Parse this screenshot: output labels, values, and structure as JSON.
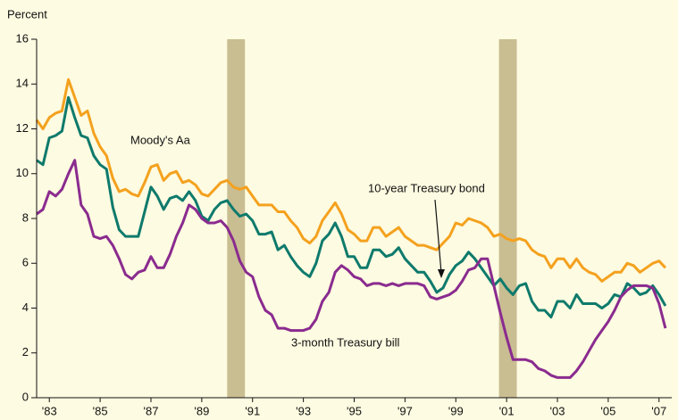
{
  "chart_data": {
    "type": "line",
    "ylabel": "Percent",
    "xlim": [
      1983,
      2008
    ],
    "ylim": [
      0,
      16
    ],
    "yticks": [
      0,
      2,
      4,
      6,
      8,
      10,
      12,
      14,
      16
    ],
    "xticks": [
      {
        "value": 1983.5,
        "label": "'83"
      },
      {
        "value": 1985.5,
        "label": "'85"
      },
      {
        "value": 1987.5,
        "label": "'87"
      },
      {
        "value": 1989.5,
        "label": "'89"
      },
      {
        "value": 1991.5,
        "label": "'91"
      },
      {
        "value": 1993.5,
        "label": "'93"
      },
      {
        "value": 1995.5,
        "label": "'95"
      },
      {
        "value": 1997.5,
        "label": "'97"
      },
      {
        "value": 1999.5,
        "label": "'99"
      },
      {
        "value": 2001.5,
        "label": "'01"
      },
      {
        "value": 2003.5,
        "label": "'03"
      },
      {
        "value": 2005.5,
        "label": "'05"
      },
      {
        "value": 2007.5,
        "label": "'07"
      }
    ],
    "shaded_periods": [
      [
        1990.5,
        1991.2
      ],
      [
        2001.2,
        2001.9
      ]
    ],
    "shade_color": "#c9bd92",
    "annotations": [
      "Moody's Aa",
      "10-year Treasury bond",
      "3-month Treasury bill"
    ],
    "x": [
      1983,
      1983.25,
      1983.5,
      1983.75,
      1984,
      1984.25,
      1984.5,
      1984.75,
      1985,
      1985.25,
      1985.5,
      1985.75,
      1986,
      1986.25,
      1986.5,
      1986.75,
      1987,
      1987.25,
      1987.5,
      1987.75,
      1988,
      1988.25,
      1988.5,
      1988.75,
      1989,
      1989.25,
      1989.5,
      1989.75,
      1990,
      1990.25,
      1990.5,
      1990.75,
      1991,
      1991.25,
      1991.5,
      1991.75,
      1992,
      1992.25,
      1992.5,
      1992.75,
      1993,
      1993.25,
      1993.5,
      1993.75,
      1994,
      1994.25,
      1994.5,
      1994.75,
      1995,
      1995.25,
      1995.5,
      1995.75,
      1996,
      1996.25,
      1996.5,
      1996.75,
      1997,
      1997.25,
      1997.5,
      1997.75,
      1998,
      1998.25,
      1998.5,
      1998.75,
      1999,
      1999.25,
      1999.5,
      1999.75,
      2000,
      2000.25,
      2000.5,
      2000.75,
      2001,
      2001.25,
      2001.5,
      2001.75,
      2002,
      2002.25,
      2002.5,
      2002.75,
      2003,
      2003.25,
      2003.5,
      2003.75,
      2004,
      2004.25,
      2004.5,
      2004.75,
      2005,
      2005.25,
      2005.5,
      2005.75,
      2006,
      2006.25,
      2006.5,
      2006.75,
      2007,
      2007.25,
      2007.5,
      2007.75
    ],
    "series": [
      {
        "name": "Moody's Aa",
        "color": "#f4a11e",
        "values": [
          12.4,
          12.0,
          12.5,
          12.7,
          12.8,
          14.2,
          13.4,
          12.6,
          12.8,
          11.8,
          11.2,
          10.8,
          9.8,
          9.2,
          9.3,
          9.1,
          9.0,
          9.6,
          10.3,
          10.4,
          9.7,
          10.0,
          10.1,
          9.6,
          9.7,
          9.5,
          9.1,
          9.0,
          9.3,
          9.6,
          9.7,
          9.4,
          9.3,
          9.4,
          9.0,
          8.6,
          8.6,
          8.6,
          8.3,
          8.3,
          7.9,
          7.6,
          7.1,
          6.9,
          7.2,
          7.9,
          8.3,
          8.7,
          8.2,
          7.5,
          7.3,
          7.0,
          7.0,
          7.6,
          7.6,
          7.2,
          7.4,
          7.6,
          7.2,
          7.0,
          6.8,
          6.8,
          6.7,
          6.6,
          6.9,
          7.2,
          7.8,
          7.7,
          8.0,
          7.9,
          7.8,
          7.6,
          7.2,
          7.3,
          7.1,
          7.0,
          7.1,
          7.0,
          6.6,
          6.4,
          6.3,
          5.8,
          6.2,
          6.2,
          5.8,
          6.2,
          5.8,
          5.6,
          5.5,
          5.2,
          5.4,
          5.6,
          5.6,
          6.0,
          5.9,
          5.6,
          5.8,
          6.0,
          6.1,
          5.8
        ]
      },
      {
        "name": "10-year Treasury bond",
        "color": "#0e7a6c",
        "values": [
          10.6,
          10.4,
          11.6,
          11.7,
          11.9,
          13.4,
          12.5,
          11.7,
          11.6,
          10.8,
          10.4,
          10.2,
          8.5,
          7.5,
          7.2,
          7.2,
          7.2,
          8.3,
          9.4,
          9.0,
          8.4,
          8.9,
          9.0,
          8.8,
          9.2,
          8.8,
          8.1,
          7.9,
          8.4,
          8.7,
          8.8,
          8.4,
          8.1,
          8.2,
          7.9,
          7.3,
          7.3,
          7.4,
          6.6,
          6.8,
          6.3,
          5.9,
          5.6,
          5.4,
          6.0,
          7.0,
          7.3,
          7.8,
          7.2,
          6.3,
          6.3,
          5.8,
          5.8,
          6.6,
          6.6,
          6.3,
          6.4,
          6.7,
          6.2,
          5.9,
          5.6,
          5.6,
          5.2,
          4.7,
          4.9,
          5.5,
          5.9,
          6.1,
          6.5,
          6.2,
          5.8,
          5.4,
          5.0,
          5.3,
          4.9,
          4.6,
          5.0,
          5.1,
          4.3,
          3.9,
          3.9,
          3.6,
          4.3,
          4.3,
          4.0,
          4.6,
          4.2,
          4.2,
          4.2,
          4.0,
          4.2,
          4.6,
          4.5,
          5.1,
          4.9,
          4.6,
          4.7,
          5.0,
          4.6,
          4.1
        ]
      },
      {
        "name": "3-month Treasury bill",
        "color": "#8a2b8f",
        "values": [
          8.2,
          8.4,
          9.2,
          9.0,
          9.3,
          10.0,
          10.6,
          8.6,
          8.2,
          7.2,
          7.1,
          7.2,
          6.8,
          6.2,
          5.5,
          5.3,
          5.6,
          5.7,
          6.3,
          5.8,
          5.8,
          6.4,
          7.2,
          7.8,
          8.6,
          8.4,
          8.0,
          7.8,
          7.8,
          7.9,
          7.6,
          7.0,
          6.1,
          5.6,
          5.4,
          4.5,
          3.9,
          3.7,
          3.1,
          3.1,
          3.0,
          3.0,
          3.0,
          3.1,
          3.5,
          4.3,
          4.7,
          5.6,
          5.9,
          5.7,
          5.4,
          5.3,
          5.0,
          5.1,
          5.1,
          5.0,
          5.1,
          5.0,
          5.1,
          5.1,
          5.1,
          5.0,
          4.5,
          4.4,
          4.5,
          4.6,
          4.8,
          5.2,
          5.7,
          5.8,
          6.2,
          6.2,
          5.0,
          3.8,
          2.7,
          1.7,
          1.7,
          1.7,
          1.6,
          1.3,
          1.2,
          1.0,
          0.9,
          0.9,
          0.9,
          1.2,
          1.6,
          2.1,
          2.6,
          3.0,
          3.4,
          3.9,
          4.5,
          4.8,
          5.0,
          5.0,
          5.0,
          4.9,
          4.2,
          3.1
        ]
      }
    ]
  }
}
